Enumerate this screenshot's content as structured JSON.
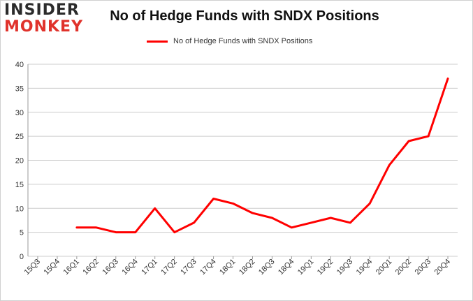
{
  "logo": {
    "line1": "INSIDER",
    "line2": "MONKEY"
  },
  "colors": {
    "series": "#ff0000",
    "grid": "#cccccc",
    "logo_red": "#e0322b"
  },
  "chart_data": {
    "type": "line",
    "title": "No of Hedge Funds with SNDX Positions",
    "xlabel": "",
    "ylabel": "",
    "ylim": [
      0,
      40
    ],
    "yticks": [
      0,
      5,
      10,
      15,
      20,
      25,
      30,
      35,
      40
    ],
    "grid": true,
    "legend_position": "top",
    "categories": [
      "15Q3",
      "15Q4",
      "16Q1",
      "16Q2",
      "16Q3",
      "16Q4",
      "17Q1",
      "17Q2",
      "17Q3",
      "17Q4",
      "18Q1",
      "18Q2",
      "18Q3",
      "18Q4",
      "19Q1",
      "19Q2",
      "19Q3",
      "19Q4",
      "20Q1",
      "20Q2",
      "20Q3",
      "20Q4"
    ],
    "series": [
      {
        "name": "No of Hedge Funds with SNDX Positions",
        "values": [
          null,
          null,
          6,
          6,
          5,
          5,
          10,
          5,
          7,
          12,
          11,
          9,
          8,
          6,
          7,
          8,
          7,
          11,
          19,
          24,
          25,
          37
        ]
      }
    ]
  }
}
